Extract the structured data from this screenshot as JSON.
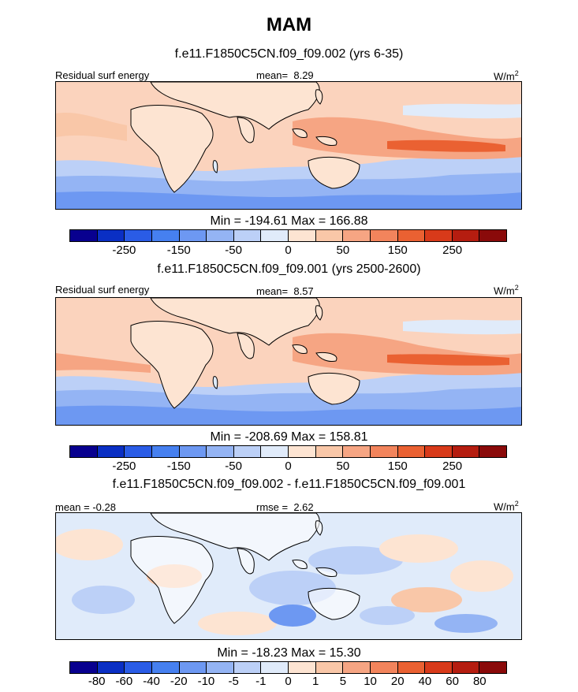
{
  "figure_title": "MAM",
  "units": "W/m",
  "units_sup": "2",
  "panels": [
    {
      "title": "f.e11.F1850C5CN.f09_f09.002 (yrs 6-35)",
      "left_label": "Residual surf energy",
      "stat_label": "mean=",
      "stat_value": "8.29",
      "minmax": "Min = -194.61 Max = 166.88"
    },
    {
      "title": "f.e11.F1850C5CN.f09_f09.001 (yrs 2500-2600)",
      "left_label": "Residual surf energy",
      "stat_label": "mean=",
      "stat_value": "8.57",
      "minmax": "Min = -208.69 Max = 158.81"
    },
    {
      "title": "f.e11.F1850C5CN.f09_f09.002 - f.e11.F1850C5CN.f09_f09.001",
      "left_label": "mean =  -0.28",
      "stat_label": "rmse =",
      "stat_value": "2.62",
      "minmax": "Min = -18.23 Max =  15.30"
    }
  ],
  "colorbar_colors": [
    "#08008f",
    "#0a2fc4",
    "#2a5ce6",
    "#4680f0",
    "#6d98f2",
    "#94b4f4",
    "#bcd0f7",
    "#e0ebfa",
    "#fde4d2",
    "#f9c7a8",
    "#f6a583",
    "#f2845c",
    "#ea6132",
    "#d83a1a",
    "#b51d10",
    "#8a0a0a"
  ],
  "colorbars": [
    {
      "levels_all": [
        -300,
        -250,
        -200,
        -150,
        -100,
        -50,
        -25,
        0,
        25,
        50,
        100,
        150,
        200,
        250,
        300
      ],
      "tick_labels": [
        "-250",
        "-150",
        "-50",
        "0",
        "50",
        "150",
        "250"
      ]
    },
    {
      "levels_all": [
        -300,
        -250,
        -200,
        -150,
        -100,
        -50,
        -25,
        0,
        25,
        50,
        100,
        150,
        200,
        250,
        300
      ],
      "tick_labels": [
        "-250",
        "-150",
        "-50",
        "0",
        "50",
        "150",
        "250"
      ]
    },
    {
      "tick_labels": [
        "-80",
        "-60",
        "-40",
        "-20",
        "-10",
        "-5",
        "-1",
        "0",
        "1",
        "5",
        "10",
        "20",
        "40",
        "60",
        "80"
      ]
    }
  ]
}
